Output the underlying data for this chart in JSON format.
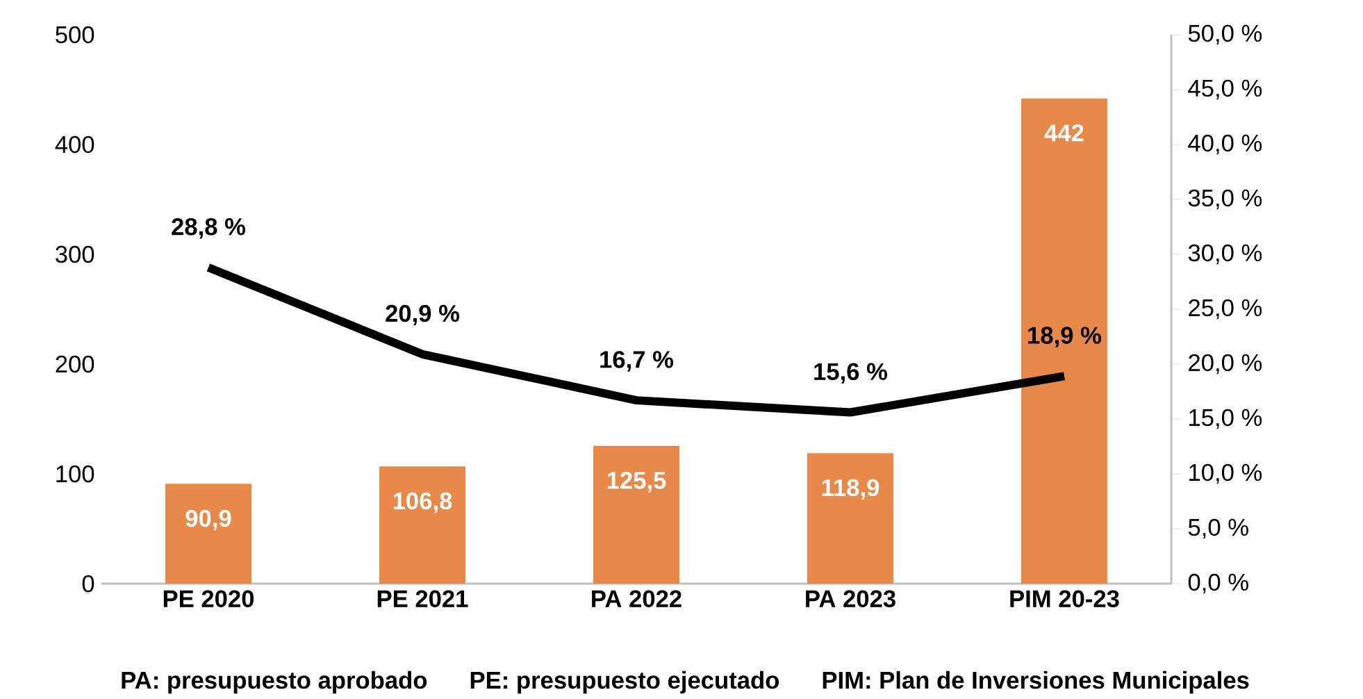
{
  "chart_data": {
    "type": "bar",
    "categories": [
      "PE 2020",
      "PE 2021",
      "PA 2022",
      "PA 2023",
      "PIM 20-23"
    ],
    "series": [
      {
        "axis": "y",
        "color": "#e8894a",
        "values": [
          90.9,
          106.8,
          125.5,
          118.9,
          442
        ],
        "value_labels": [
          "90,9",
          "106,8",
          "125,5",
          "118,9",
          "442"
        ]
      },
      {
        "type": "line",
        "axis": "y2",
        "color": "#000000",
        "values": [
          28.8,
          20.9,
          16.7,
          15.6,
          18.9
        ],
        "value_labels": [
          "28,8 %",
          "20,9 %",
          "16,7 %",
          "15,6 %",
          "18,9 %"
        ]
      }
    ],
    "ylim": [
      0,
      500
    ],
    "yticks": [
      0,
      100,
      200,
      300,
      400,
      500
    ],
    "y2lim": [
      0,
      50
    ],
    "y2ticks": [
      {
        "value": 0,
        "label": "0,0 %"
      },
      {
        "value": 5,
        "label": "5,0 %"
      },
      {
        "value": 10,
        "label": "10,0 %"
      },
      {
        "value": 15,
        "label": "15,0 %"
      },
      {
        "value": 20,
        "label": "20,0 %"
      },
      {
        "value": 25,
        "label": "25,0 %"
      },
      {
        "value": 30,
        "label": "30,0 %"
      },
      {
        "value": 35,
        "label": "35,0 %"
      },
      {
        "value": 40,
        "label": "40,0 %"
      },
      {
        "value": 45,
        "label": "45,0 %"
      },
      {
        "value": 50,
        "label": "50,0 %"
      }
    ],
    "annotations": [
      "PA: presupuesto aprobado",
      "PE: presupuesto ejecutado",
      "PIM: Plan de Inversiones Municipales"
    ]
  }
}
